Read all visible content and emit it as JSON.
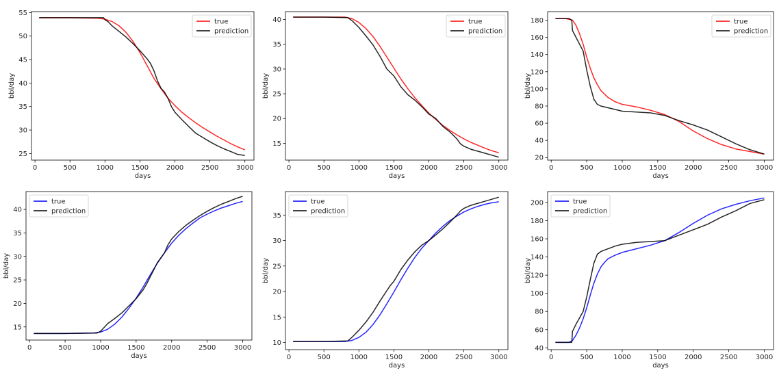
{
  "chart_data": [
    {
      "type": "line",
      "xlabel": "days",
      "ylabel": "bbl/day",
      "xlim": [
        -50,
        3130
      ],
      "ylim": [
        23.6,
        55.2
      ],
      "xticks": [
        0,
        500,
        1000,
        1500,
        2000,
        2500,
        3000
      ],
      "yticks": [
        25,
        30,
        35,
        40,
        45,
        50,
        55
      ],
      "legend_position": "top-right",
      "series": [
        {
          "name": "true",
          "color": "#ff0000",
          "x": [
            60,
            500,
            900,
            1000,
            1100,
            1200,
            1300,
            1400,
            1500,
            1600,
            1700,
            1800,
            1900,
            2000,
            2100,
            2200,
            2300,
            2400,
            2500,
            2600,
            2700,
            2800,
            2900,
            3000
          ],
          "y": [
            53.9,
            53.9,
            53.8,
            53.6,
            53.1,
            52.2,
            50.8,
            48.9,
            46.5,
            43.8,
            41.0,
            38.8,
            36.8,
            35.2,
            33.8,
            32.6,
            31.5,
            30.5,
            29.6,
            28.7,
            27.9,
            27.1,
            26.4,
            25.8
          ]
        },
        {
          "name": "prediction",
          "color": "#000000",
          "x": [
            60,
            500,
            980,
            1000,
            1050,
            1100,
            1150,
            1200,
            1300,
            1400,
            1500,
            1600,
            1650,
            1700,
            1750,
            1800,
            1850,
            1900,
            1950,
            2000,
            2100,
            2200,
            2300,
            2400,
            2500,
            2600,
            2700,
            2800,
            2900,
            3000
          ],
          "y": [
            53.9,
            53.9,
            53.9,
            53.5,
            53.0,
            52.2,
            51.6,
            51.0,
            49.8,
            48.4,
            46.9,
            45.2,
            44.2,
            42.6,
            40.5,
            38.9,
            38.1,
            36.8,
            35.0,
            33.8,
            32.2,
            30.7,
            29.3,
            28.4,
            27.5,
            26.7,
            26.0,
            25.4,
            24.8,
            24.6
          ]
        }
      ]
    },
    {
      "type": "line",
      "xlabel": "days",
      "ylabel": "bbl/day",
      "xlim": [
        -50,
        3130
      ],
      "ylim": [
        11.6,
        41.6
      ],
      "xticks": [
        0,
        500,
        1000,
        1500,
        2000,
        2500,
        3000
      ],
      "yticks": [
        15,
        20,
        25,
        30,
        35,
        40
      ],
      "legend_position": "top-right",
      "series": [
        {
          "name": "true",
          "color": "#ff0000",
          "x": [
            60,
            500,
            800,
            900,
            1000,
            1100,
            1200,
            1300,
            1400,
            1500,
            1600,
            1700,
            1800,
            1900,
            2000,
            2100,
            2200,
            2300,
            2400,
            2500,
            2600,
            2700,
            2800,
            2900,
            3000
          ],
          "y": [
            40.5,
            40.5,
            40.5,
            40.2,
            39.4,
            38.2,
            36.6,
            34.6,
            32.4,
            30.2,
            28.0,
            26.0,
            24.2,
            22.6,
            21.1,
            19.8,
            18.6,
            17.6,
            16.7,
            15.9,
            15.2,
            14.6,
            14.0,
            13.5,
            13.1
          ]
        },
        {
          "name": "prediction",
          "color": "#000000",
          "x": [
            60,
            500,
            840,
            900,
            1000,
            1100,
            1200,
            1300,
            1400,
            1450,
            1500,
            1600,
            1700,
            1800,
            1900,
            2000,
            2100,
            2150,
            2200,
            2300,
            2400,
            2450,
            2500,
            2600,
            2700,
            2800,
            2900,
            3000
          ],
          "y": [
            40.5,
            40.5,
            40.4,
            39.8,
            38.4,
            36.7,
            34.9,
            32.6,
            30.0,
            29.3,
            28.6,
            26.4,
            24.8,
            23.7,
            22.4,
            20.9,
            20.0,
            19.2,
            18.4,
            17.3,
            15.9,
            14.9,
            14.4,
            13.8,
            13.4,
            13.0,
            12.6,
            12.2
          ]
        }
      ]
    },
    {
      "type": "line",
      "xlabel": "days",
      "ylabel": "bbl/day",
      "xlim": [
        -50,
        3130
      ],
      "ylim": [
        17,
        190
      ],
      "xticks": [
        0,
        500,
        1000,
        1500,
        2000,
        2500,
        3000
      ],
      "yticks": [
        20,
        40,
        60,
        80,
        100,
        120,
        140,
        160,
        180
      ],
      "legend_position": "top-right",
      "series": [
        {
          "name": "true",
          "color": "#ff0000",
          "x": [
            60,
            200,
            300,
            350,
            400,
            450,
            500,
            550,
            600,
            650,
            700,
            800,
            900,
            1000,
            1200,
            1400,
            1600,
            1800,
            2000,
            2200,
            2400,
            2600,
            2800,
            3000
          ],
          "y": [
            182,
            182,
            180,
            174,
            164,
            152,
            137,
            124,
            113,
            105,
            98,
            90,
            85,
            82,
            79,
            75,
            70,
            62,
            51,
            42,
            35,
            30,
            27,
            24
          ]
        },
        {
          "name": "prediction",
          "color": "#000000",
          "x": [
            60,
            250,
            290,
            300,
            350,
            400,
            450,
            500,
            550,
            600,
            650,
            700,
            800,
            900,
            1000,
            1200,
            1400,
            1600,
            1800,
            2000,
            2200,
            2400,
            2600,
            2800,
            3000
          ],
          "y": [
            182,
            182,
            180,
            168,
            160,
            152,
            144,
            122,
            103,
            88,
            82,
            80,
            78,
            76,
            74,
            73,
            72,
            69,
            63,
            58,
            52,
            44,
            36,
            29,
            24
          ]
        }
      ]
    },
    {
      "type": "line",
      "xlabel": "days",
      "ylabel": "bbl/day",
      "xlim": [
        -50,
        3130
      ],
      "ylim": [
        12.2,
        43.8
      ],
      "xticks": [
        0,
        500,
        1000,
        1500,
        2000,
        2500,
        3000
      ],
      "yticks": [
        15,
        20,
        25,
        30,
        35,
        40
      ],
      "legend_position": "top-left",
      "series": [
        {
          "name": "true",
          "color": "#0000ff",
          "x": [
            60,
            500,
            900,
            1000,
            1100,
            1200,
            1300,
            1400,
            1500,
            1600,
            1700,
            1800,
            1900,
            2000,
            2100,
            2200,
            2300,
            2400,
            2500,
            2600,
            2700,
            2800,
            2900,
            3000
          ],
          "y": [
            13.6,
            13.6,
            13.7,
            13.9,
            14.5,
            15.6,
            17.1,
            19.0,
            21.1,
            23.5,
            26.1,
            28.6,
            30.8,
            32.8,
            34.5,
            35.9,
            37.1,
            38.2,
            39.0,
            39.7,
            40.3,
            40.8,
            41.3,
            41.7
          ]
        },
        {
          "name": "prediction",
          "color": "#000000",
          "x": [
            60,
            500,
            950,
            1000,
            1050,
            1100,
            1200,
            1300,
            1400,
            1500,
            1600,
            1650,
            1700,
            1750,
            1800,
            1900,
            1950,
            2000,
            2100,
            2200,
            2300,
            2400,
            2500,
            2600,
            2700,
            2800,
            2900,
            3000
          ],
          "y": [
            13.6,
            13.6,
            13.7,
            14.1,
            14.9,
            15.7,
            16.8,
            18.0,
            19.5,
            21.0,
            22.9,
            24.2,
            25.7,
            27.2,
            28.7,
            30.8,
            32.5,
            33.7,
            35.3,
            36.6,
            37.7,
            38.7,
            39.6,
            40.4,
            41.1,
            41.7,
            42.3,
            42.8
          ]
        }
      ]
    },
    {
      "type": "line",
      "xlabel": "days",
      "ylabel": "bbl/day",
      "xlim": [
        -50,
        3130
      ],
      "ylim": [
        8.6,
        39.6
      ],
      "xticks": [
        0,
        500,
        1000,
        1500,
        2000,
        2500,
        3000
      ],
      "yticks": [
        10,
        15,
        20,
        25,
        30,
        35
      ],
      "legend_position": "top-left",
      "series": [
        {
          "name": "true",
          "color": "#0000ff",
          "x": [
            60,
            500,
            800,
            900,
            1000,
            1100,
            1200,
            1300,
            1400,
            1500,
            1600,
            1700,
            1800,
            1900,
            2000,
            2100,
            2200,
            2300,
            2400,
            2500,
            2600,
            2700,
            2800,
            2900,
            3000
          ],
          "y": [
            10.2,
            10.2,
            10.2,
            10.4,
            11.0,
            12.0,
            13.5,
            15.4,
            17.6,
            19.9,
            22.3,
            24.6,
            26.7,
            28.5,
            30.0,
            31.5,
            32.8,
            33.9,
            34.8,
            35.6,
            36.2,
            36.7,
            37.1,
            37.4,
            37.6
          ]
        },
        {
          "name": "prediction",
          "color": "#000000",
          "x": [
            60,
            500,
            840,
            900,
            1000,
            1100,
            1200,
            1300,
            1400,
            1450,
            1500,
            1600,
            1700,
            1800,
            1900,
            2000,
            2100,
            2200,
            2300,
            2400,
            2450,
            2500,
            2600,
            2700,
            2800,
            2900,
            3000
          ],
          "y": [
            10.2,
            10.2,
            10.3,
            11.0,
            12.4,
            14.0,
            15.9,
            18.1,
            20.2,
            21.2,
            22.0,
            24.3,
            26.2,
            27.8,
            29.1,
            30.0,
            31.1,
            32.3,
            33.6,
            35.0,
            35.8,
            36.3,
            36.9,
            37.3,
            37.7,
            38.1,
            38.5
          ]
        }
      ]
    },
    {
      "type": "line",
      "xlabel": "days",
      "ylabel": "bbl/day",
      "xlim": [
        -50,
        3130
      ],
      "ylim": [
        38,
        212
      ],
      "xticks": [
        0,
        500,
        1000,
        1500,
        2000,
        2500,
        3000
      ],
      "yticks": [
        40,
        60,
        80,
        100,
        120,
        140,
        160,
        180,
        200
      ],
      "legend_position": "top-left",
      "series": [
        {
          "name": "true",
          "color": "#0000ff",
          "x": [
            60,
            250,
            300,
            350,
            400,
            450,
            500,
            550,
            600,
            650,
            700,
            750,
            800,
            900,
            1000,
            1200,
            1400,
            1600,
            1800,
            2000,
            2200,
            2400,
            2600,
            2800,
            3000
          ],
          "y": [
            46,
            46,
            48,
            54,
            62,
            72,
            84,
            98,
            111,
            121,
            129,
            134,
            138,
            142,
            145,
            149,
            153,
            158,
            167,
            177,
            186,
            193,
            198,
            202,
            205
          ]
        },
        {
          "name": "prediction",
          "color": "#000000",
          "x": [
            60,
            290,
            300,
            350,
            400,
            450,
            500,
            550,
            600,
            650,
            700,
            800,
            900,
            1000,
            1200,
            1400,
            1600,
            1800,
            2000,
            2200,
            2400,
            2600,
            2800,
            3000
          ],
          "y": [
            46,
            46,
            58,
            66,
            73,
            80,
            96,
            115,
            133,
            143,
            146,
            149,
            152,
            154,
            156,
            157,
            158,
            164,
            170,
            176,
            184,
            191,
            199,
            203
          ]
        }
      ]
    }
  ]
}
